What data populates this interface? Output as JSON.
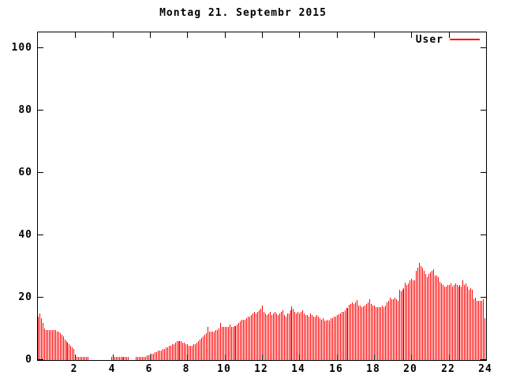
{
  "title": "Montag 21. Septembr 2015",
  "legend": {
    "label": "User",
    "color": "#ff0000"
  },
  "colors": {
    "bar": "#ff0000",
    "axis": "#000000",
    "background": "#ffffff",
    "text": "#000000"
  },
  "chart_data": {
    "type": "bar",
    "title": "Montag 21. Septembr 2015",
    "xlabel": "",
    "ylabel": "",
    "x_unit": "hour-of-day",
    "interval_minutes": 5,
    "x_range": [
      0,
      24
    ],
    "y_range": [
      0,
      105
    ],
    "xticks": [
      2,
      4,
      6,
      8,
      10,
      12,
      14,
      16,
      18,
      20,
      22,
      24
    ],
    "yticks": [
      0,
      20,
      40,
      60,
      80,
      100
    ],
    "grid": false,
    "legend_position": "top-right",
    "series": [
      {
        "name": "User",
        "color": "#ff0000",
        "values": [
          14,
          15,
          13.5,
          12,
          10,
          9.5,
          9.5,
          9.5,
          9.5,
          9.5,
          9.5,
          9.5,
          9,
          9,
          8.5,
          8,
          7.5,
          6.5,
          6,
          5.5,
          5,
          4.5,
          4,
          3.5,
          1,
          1,
          1,
          1,
          1,
          1,
          1,
          1,
          1,
          0,
          0,
          0,
          0,
          0,
          0,
          0,
          0,
          0,
          0,
          0,
          0,
          0,
          0,
          1,
          1,
          1,
          1,
          1,
          1,
          1,
          1,
          1,
          1,
          1,
          1,
          0,
          0,
          0,
          0,
          1,
          1,
          1,
          1,
          1,
          1,
          1,
          1.5,
          1.5,
          2,
          2,
          2,
          2.5,
          2.5,
          3,
          3,
          3,
          3.5,
          3.5,
          4,
          4,
          4.5,
          4.5,
          5,
          5,
          5.5,
          6,
          6,
          6,
          6,
          5.5,
          5.5,
          5,
          5,
          4.5,
          4.5,
          4.5,
          5,
          5,
          5.5,
          6,
          6.5,
          7,
          7.5,
          8,
          8.5,
          10.5,
          9,
          9,
          9,
          9,
          9.5,
          9.5,
          10,
          11.8,
          10.5,
          10.5,
          10.5,
          10.5,
          10.5,
          11.4,
          10.5,
          10.5,
          11,
          11,
          11.5,
          12,
          12.5,
          13,
          13,
          13,
          13.5,
          14,
          14,
          14.5,
          15,
          15.5,
          15,
          15.5,
          16,
          16.5,
          17.5,
          15.5,
          15,
          14.5,
          15,
          15.5,
          14.5,
          15,
          15.5,
          15,
          14.5,
          15,
          15.5,
          16,
          14.5,
          14,
          15,
          15,
          16,
          17.2,
          16.5,
          15.5,
          15,
          15.5,
          15,
          15.5,
          16,
          15,
          14.5,
          14.5,
          14,
          15,
          14.5,
          14,
          14,
          14.5,
          14,
          13.5,
          13,
          13.5,
          12.6,
          12.6,
          13,
          12.6,
          13.5,
          13.5,
          14,
          14,
          14.5,
          14.7,
          15,
          15.5,
          15.5,
          16,
          16.8,
          16.8,
          17.6,
          18,
          18.5,
          18,
          18.5,
          19.3,
          17.5,
          17.5,
          17,
          17.2,
          17.5,
          18,
          18.5,
          19.5,
          18,
          17.5,
          17.5,
          17,
          17,
          17,
          17,
          17.5,
          17,
          17.5,
          18.5,
          19,
          20,
          19.5,
          19.5,
          20,
          19.5,
          19,
          22.5,
          22,
          22.5,
          23,
          24.8,
          24,
          24.5,
          25.5,
          26,
          25.5,
          25.5,
          28.5,
          29.5,
          31,
          30,
          29.5,
          28.5,
          27.5,
          26.5,
          27.5,
          28,
          28.5,
          29,
          27,
          27,
          26.5,
          25,
          24.5,
          24,
          23.5,
          23.5,
          24,
          24,
          24.5,
          23.5,
          24,
          24.5,
          24,
          23.5,
          24,
          23.5,
          25.5,
          24,
          24.5,
          23.5,
          22.5,
          23,
          22.5,
          19.5,
          20,
          19,
          19,
          19,
          19,
          19.5,
          13.5
        ]
      }
    ]
  }
}
